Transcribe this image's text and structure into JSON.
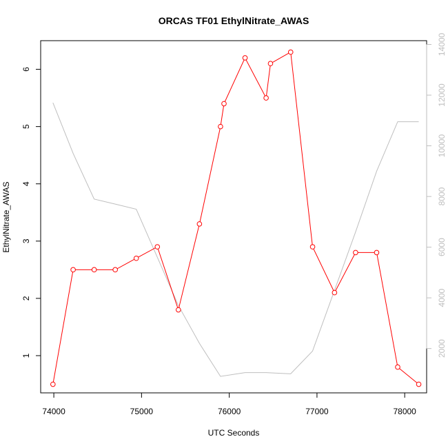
{
  "chart_data": {
    "type": "line",
    "title": "ORCAS TF01 EthylNitrate_AWAS",
    "xlabel": "UTC Seconds",
    "ylabel": "EthylNitrate_AWAS",
    "xlim": [
      73850,
      78250
    ],
    "ylim": [
      0.35,
      6.5
    ],
    "y2lim": [
      250,
      14150
    ],
    "x_ticks": [
      74000,
      75000,
      76000,
      77000,
      78000
    ],
    "x_tick_labels": [
      "74000",
      "75000",
      "76000",
      "77000",
      "78000"
    ],
    "y_ticks": [
      1,
      2,
      3,
      4,
      5,
      6
    ],
    "y_tick_labels": [
      "1",
      "2",
      "3",
      "4",
      "5",
      "6"
    ],
    "y2_ticks": [
      2000,
      4000,
      6000,
      8000,
      10000,
      12000,
      14000
    ],
    "y2_tick_labels": [
      "2000",
      "4000",
      "6000",
      "8000",
      "10000",
      "12000",
      "14000"
    ],
    "grid": false,
    "series": [
      {
        "axis": "left",
        "color": "#ff0000",
        "marker": "open-circle",
        "x": [
          73990,
          74220,
          74460,
          74700,
          74940,
          75180,
          75420,
          75660,
          75900,
          75940,
          76180,
          76420,
          76470,
          76700,
          76950,
          77200,
          77440,
          77680,
          77920,
          78160
        ],
        "y": [
          0.5,
          2.5,
          2.5,
          2.5,
          2.7,
          2.9,
          1.8,
          3.3,
          5.0,
          5.4,
          6.2,
          5.5,
          6.1,
          6.3,
          2.9,
          2.1,
          2.8,
          2.8,
          0.8,
          0.5
        ]
      },
      {
        "axis": "right",
        "color": "#bebebe",
        "marker": "none",
        "x": [
          73990,
          74220,
          74460,
          74700,
          74940,
          75180,
          75420,
          75660,
          75900,
          76180,
          76420,
          76700,
          76950,
          77200,
          77440,
          77680,
          77920,
          78160
        ],
        "y": [
          11700,
          9700,
          7900,
          7700,
          7500,
          5600,
          3700,
          2200,
          900,
          1050,
          1050,
          1000,
          1900,
          4300,
          6600,
          9000,
          10950,
          10950
        ]
      }
    ]
  }
}
